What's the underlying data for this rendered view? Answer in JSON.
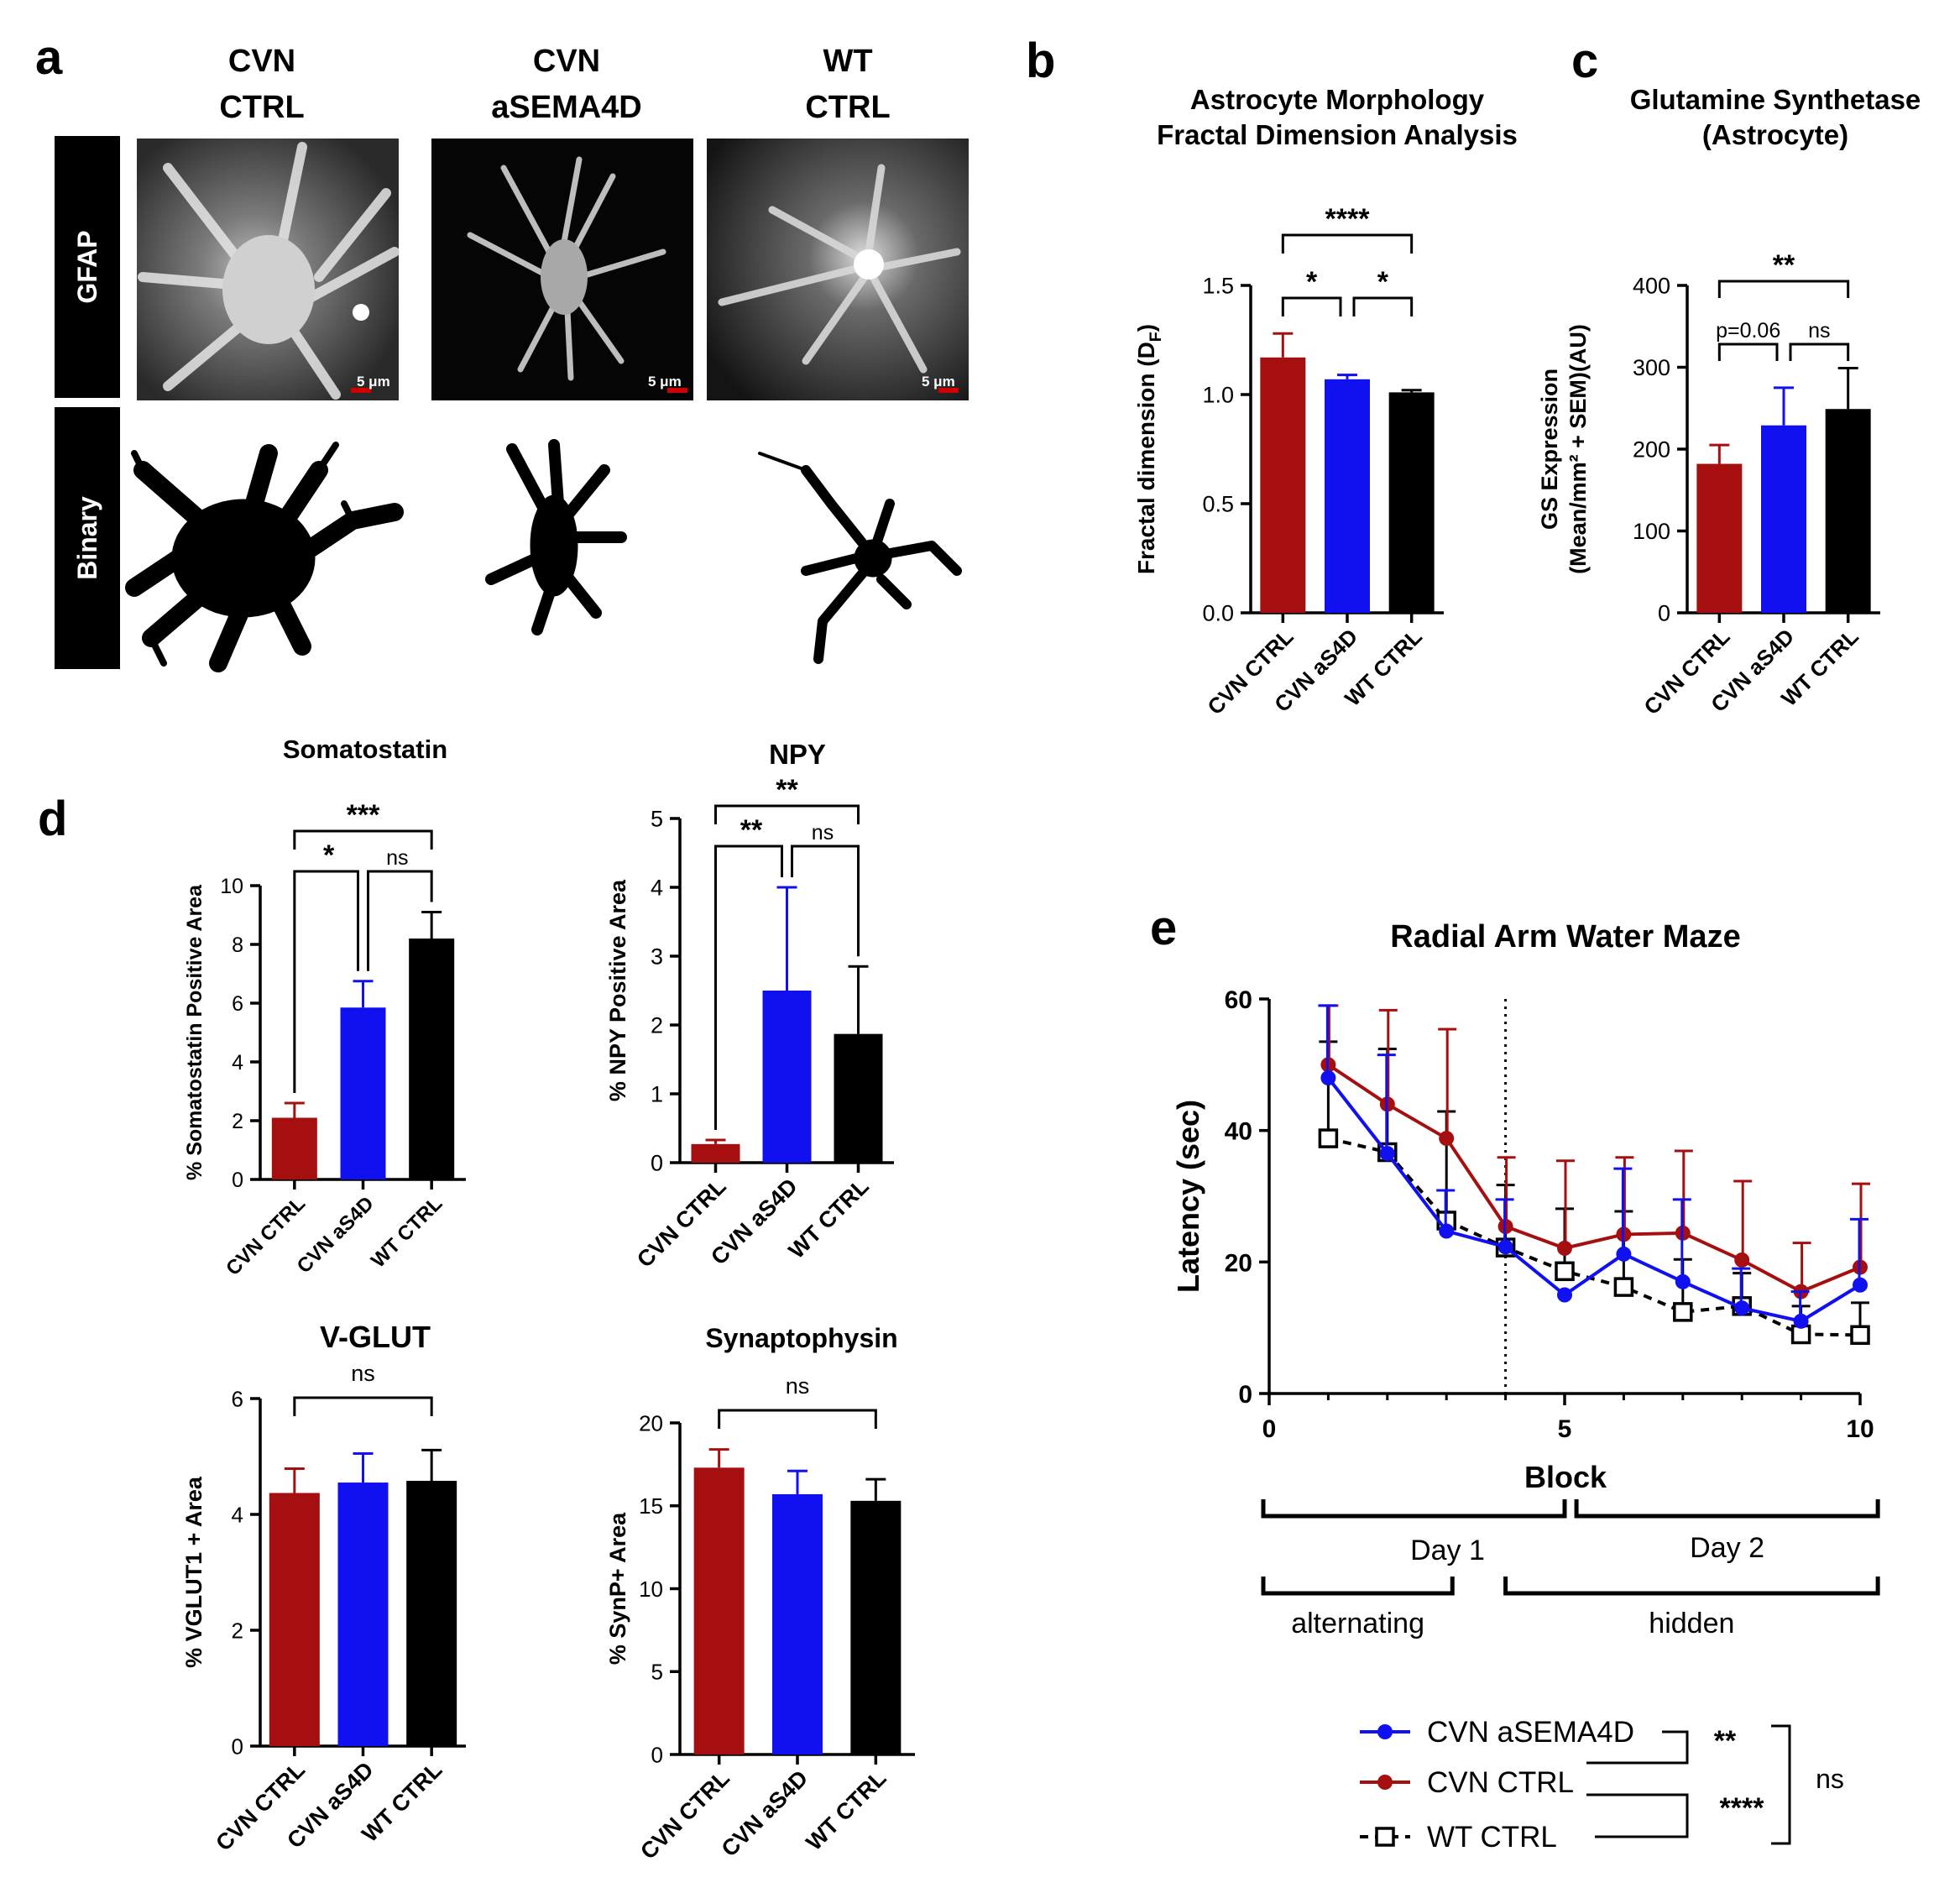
{
  "colors": {
    "red": "#a50f0f",
    "blue": "#1010f0",
    "black": "#000000"
  },
  "panel_a": {
    "label": "a",
    "columns": [
      {
        "line1": "CVN",
        "line2": "CTRL"
      },
      {
        "line1": "CVN",
        "line2": "aSEMA4D"
      },
      {
        "line1": "WT",
        "line2": "CTRL"
      }
    ],
    "rows": [
      "GFAP",
      "Binary"
    ],
    "scale_bar": "5 μm"
  },
  "chart_data": [
    {
      "id": "b",
      "type": "bar",
      "panel_label": "b",
      "title": [
        "Astrocyte Morphology",
        "Fractal Dimension Analysis"
      ],
      "ylabel": "Fractal dimension (D",
      "ylabel_sub": "F",
      "ylabel_end": ")",
      "ylim": [
        0,
        1.5
      ],
      "ticks": [
        0.0,
        0.5,
        1.0,
        1.5
      ],
      "tick_labels": [
        "0.0",
        "0.5",
        "1.0",
        "1.5"
      ],
      "categories": [
        "CVN CTRL",
        "CVN aS4D",
        "WT CTRL"
      ],
      "values": [
        1.17,
        1.07,
        1.01
      ],
      "errors": [
        0.11,
        0.02,
        0.01
      ],
      "sig": [
        {
          "from": 0,
          "to": 1,
          "label": "*"
        },
        {
          "from": 1,
          "to": 2,
          "label": "*"
        },
        {
          "from": 0,
          "to": 2,
          "label": "****"
        }
      ]
    },
    {
      "id": "c",
      "type": "bar",
      "panel_label": "c",
      "title": [
        "Glutamine Synthetase",
        "(Astrocyte)"
      ],
      "ylabel_line1": "GS Expression",
      "ylabel_line2": "(Mean/mm² + SEM)(AU)",
      "ylim": [
        0,
        400
      ],
      "ticks": [
        0,
        100,
        200,
        300,
        400
      ],
      "tick_labels": [
        "0",
        "100",
        "200",
        "300",
        "400"
      ],
      "categories": [
        "CVN CTRL",
        "CVN aS4D",
        "WT CTRL"
      ],
      "values": [
        182,
        229,
        249
      ],
      "errors": [
        23,
        46,
        50
      ],
      "sig": [
        {
          "from": 0,
          "to": 1,
          "label": "p=0.06"
        },
        {
          "from": 1,
          "to": 2,
          "label": "ns"
        },
        {
          "from": 0,
          "to": 2,
          "label": "**"
        }
      ]
    },
    {
      "id": "d1",
      "type": "bar",
      "panel_label": "d",
      "title": [
        "Somatostatin"
      ],
      "ylabel": "% Somatostatin Positive Area",
      "ylim": [
        0,
        10
      ],
      "ticks": [
        0,
        2,
        4,
        6,
        8,
        10
      ],
      "tick_labels": [
        "0",
        "2",
        "4",
        "6",
        "8",
        "10"
      ],
      "categories": [
        "CVN CTRL",
        "CVN aS4D",
        "WT CTRL"
      ],
      "values": [
        2.1,
        5.85,
        8.2
      ],
      "errors": [
        0.5,
        0.9,
        0.9
      ],
      "sig": [
        {
          "from": 0,
          "to": 1,
          "label": "*"
        },
        {
          "from": 1,
          "to": 2,
          "label": "ns"
        },
        {
          "from": 0,
          "to": 2,
          "label": "***"
        }
      ]
    },
    {
      "id": "d2",
      "type": "bar",
      "title": [
        "NPY"
      ],
      "ylabel": "% NPY Positive Area",
      "ylim": [
        0,
        5
      ],
      "ticks": [
        0,
        1,
        2,
        3,
        4,
        5
      ],
      "tick_labels": [
        "0",
        "1",
        "2",
        "3",
        "4",
        "5"
      ],
      "categories": [
        "CVN CTRL",
        "CVN aS4D",
        "WT CTRL"
      ],
      "values": [
        0.27,
        2.5,
        1.87
      ],
      "errors": [
        0.06,
        1.5,
        0.98
      ],
      "sig": [
        {
          "from": 0,
          "to": 1,
          "label": "**"
        },
        {
          "from": 1,
          "to": 2,
          "label": "ns"
        },
        {
          "from": 0,
          "to": 2,
          "label": "**"
        }
      ]
    },
    {
      "id": "d3",
      "type": "bar",
      "title": [
        "V-GLUT"
      ],
      "ylabel": "% VGLUT1 + Area",
      "ylim": [
        0,
        6
      ],
      "ticks": [
        0,
        2,
        4,
        6
      ],
      "tick_labels": [
        "0",
        "2",
        "4",
        "6"
      ],
      "categories": [
        "CVN CTRL",
        "CVN aS4D",
        "WT CTRL"
      ],
      "values": [
        4.37,
        4.55,
        4.58
      ],
      "errors": [
        0.42,
        0.5,
        0.53
      ],
      "sig": [
        {
          "from": 0,
          "to": 2,
          "label": "ns"
        }
      ]
    },
    {
      "id": "d4",
      "type": "bar",
      "title": [
        "Synaptophysin"
      ],
      "ylabel": "% SynP+ Area",
      "ylim": [
        0,
        20
      ],
      "ticks": [
        0,
        5,
        10,
        15,
        20
      ],
      "tick_labels": [
        "0",
        "5",
        "10",
        "15",
        "20"
      ],
      "categories": [
        "CVN CTRL",
        "CVN aS4D",
        "WT CTRL"
      ],
      "values": [
        17.3,
        15.7,
        15.3
      ],
      "errors": [
        1.1,
        1.4,
        1.3
      ],
      "sig": [
        {
          "from": 0,
          "to": 2,
          "label": "ns"
        }
      ]
    },
    {
      "id": "e",
      "type": "line",
      "panel_label": "e",
      "title": "Radial Arm Water Maze",
      "xlabel": "Block",
      "ylabel": "Latency (sec)",
      "xlim": [
        0,
        10
      ],
      "ylim": [
        0,
        60
      ],
      "xticks": [
        0,
        5,
        10
      ],
      "xtick_labels": [
        "0",
        "5",
        "10"
      ],
      "yticks": [
        0,
        20,
        40,
        60
      ],
      "ytick_labels": [
        "0",
        "20",
        "40",
        "60"
      ],
      "vline_x": 4,
      "x": [
        1,
        2,
        3,
        4,
        5,
        6,
        7,
        8,
        9,
        10
      ],
      "series": [
        {
          "name": "CVN aSEMA4D",
          "color": "#1010f0",
          "marker": "circle",
          "dash": false,
          "values": [
            48,
            36.5,
            24.7,
            22.3,
            15,
            21.2,
            17,
            13,
            11,
            16.5
          ],
          "errors": [
            11,
            15,
            6.2,
            7.2,
            0,
            13,
            12.5,
            6,
            4.5,
            10
          ]
        },
        {
          "name": "CVN CTRL",
          "color": "#a50f0f",
          "marker": "circle",
          "dash": false,
          "values": [
            50,
            44,
            38.8,
            25.4,
            22.1,
            24.2,
            24.4,
            20.3,
            15.5,
            19.2
          ],
          "errors": [
            9,
            14.3,
            16.6,
            10.5,
            13.3,
            11.7,
            12.5,
            12,
            7.4,
            12.7
          ]
        },
        {
          "name": "WT CTRL",
          "color": "#000000",
          "marker": "square",
          "dash": true,
          "values": [
            38.8,
            36.7,
            26.3,
            22.2,
            18.6,
            16.2,
            12.4,
            13.3,
            9,
            8.9
          ],
          "errors": [
            14.7,
            15.7,
            16.6,
            9.5,
            9.5,
            11.5,
            8,
            5,
            4.3,
            4.9
          ]
        }
      ]
    }
  ],
  "panel_e_extra": {
    "brackets": [
      {
        "label": "Day 1",
        "from": 0,
        "to": 5
      },
      {
        "label": "Day 2",
        "from": 5.2,
        "to": 10.3
      },
      {
        "label": "alternating",
        "from": 0,
        "to": 3.1
      },
      {
        "label": "hidden",
        "from": 4,
        "to": 10.3
      }
    ],
    "legend_sig": {
      "pair1": "**",
      "pair2": "****",
      "outer": "ns"
    }
  }
}
